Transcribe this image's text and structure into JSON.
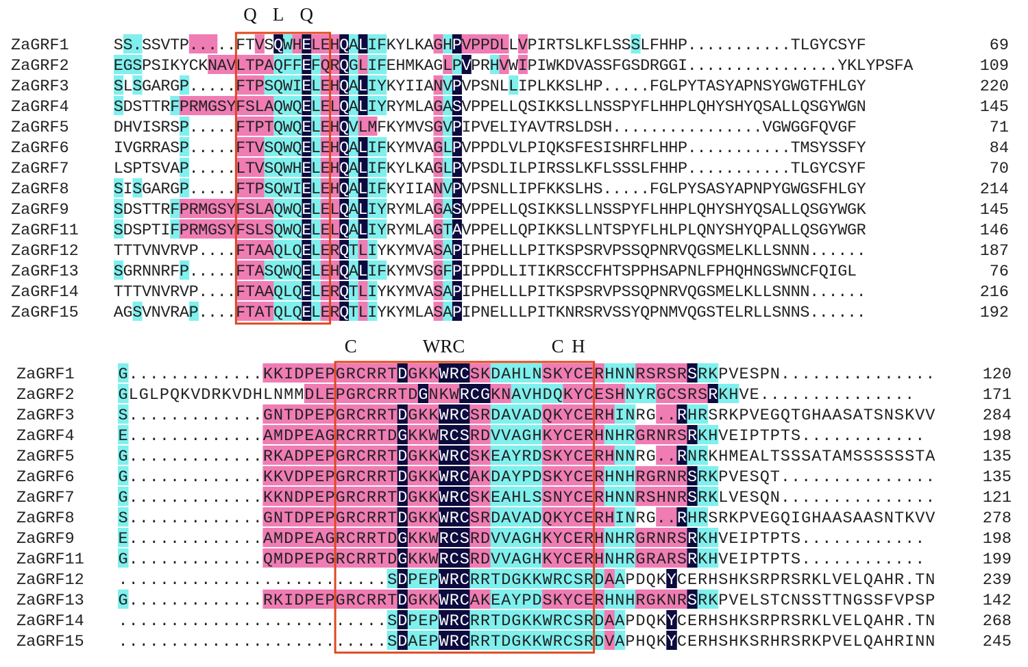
{
  "colors": {
    "identical": "#0c0a3e",
    "high_similarity": "#f07cb4",
    "similar": "#7ff0ee",
    "box": "#e0471f",
    "text": "#222222"
  },
  "blocks": [
    {
      "motif_labels": [
        {
          "text": "Q",
          "col": 14
        },
        {
          "text": "L",
          "col": 17
        },
        {
          "text": "Q",
          "col": 20
        }
      ],
      "box": {
        "start_col": 13,
        "end_col": 22
      },
      "rows": [
        {
          "name": "ZaGRF1",
          "seq": "SS.SSVTP.....FTVSQWHELEHQALIFKYLKAGHPVPPDLLVPIRTSLKFLSSSLFHHP...........TLGYCSYF",
          "num": "69",
          "color": ".cc.....mmm....m.dcmdmmmdcdcc.....mcdmmmmm.m...........c..."
        },
        {
          "name": "ZaGRF2",
          "seq": "EGSPSIKYCKNAVLTPAQFFEFQRQGLIFEHMKAGLPVPRHVWIPIWKDVASSFGSDRGGI................YKLYPSFA",
          "num": "109",
          "color": "ccc.......mmmmmmmcccdcmmdcmcc......mcd..cm.m"
        },
        {
          "name": "ZaGRF3",
          "seq": "SLSGARGP.....FTPSQWIELEHQALIYKYIIANVPVPSNLLIPLKKSLHP.....FGLPYTASYAPNSYGWGTFHLGY",
          "num": "220",
          "color": "c.c....c.....mmmccccdcmmdcdcc.....mcd.....c......................................c....................c"
        },
        {
          "name": "ZaGRF4",
          "seq": "SDSTTRFPRMGSYFSLAQWQELELQALIYRYMLAGASVPPELLQSIKKSLLNSSPYFLHHPLQHYSHYQSALLQSGYWGN",
          "num": "145",
          "color": "c.....cmmmmmmmmmmcccdcmmdcdcc.....mcd"
        },
        {
          "name": "ZaGRF5",
          "seq": "DHVISRSP.....FTPTQWQELEHQVLMFKYMVSGVPIPVELIYAVTRSLDSH................VGWGGFQVGF",
          "num": "71",
          "color": ".......c.....mmmmcccdcmmdcmm......mcd"
        },
        {
          "name": "ZaGRF6",
          "seq": "IVGRRASP.....FTVSQWQELEHQALIFKYMVAGLPVPPDLVLPIQKSFESISHRFLHHP...........TMSYSSFY",
          "num": "84",
          "color": ".......c.....mmmccccdcmmdcdcc.....mcd"
        },
        {
          "name": "ZaGRF7",
          "seq": "LSPTSVAP.....LTVSQWHELEHQALIFKYLKAGLPVPSDLILPIRSSLKFLSSSLFHHP...........TLGYCSYF",
          "num": "70",
          "color": ".......c.....mmmccccdcmmdcdcc.....mcd"
        },
        {
          "name": "ZaGRF8",
          "seq": "SISGARGP.....FTPSQWIELEHQALIFKYIIANVPVPSNLLIPFKKSLHS.....FGLPYSASYAPNPYGWGSFHLGY",
          "num": "214",
          "color": "c.c....c.....mmmccccdcmmdcdcc.....mcd"
        },
        {
          "name": "ZaGRF9",
          "seq": "SDSTTRFPRMGSYFSLAQWQELELQALIYRYMLAGASVPPELLQSIKKSLLNSSPYFLHHPLQHYSHYQSALLQSGYWGK",
          "num": "145",
          "color": "c.....cmmmmmmmmmmcccdcmmdcdcc.....mcd"
        },
        {
          "name": "ZaGRF11",
          "seq": "SDSPTIFPRMGSYFSLSQWQELELQALIYRYMLAGTAVPPELLQPIKKSLLNTSPYFLHLPLQNYSHYQPALLQSGYWGR",
          "num": "146",
          "color": "c.....cmmmmmmmmmmcccdcmmdcdcc.....mcd"
        },
        {
          "name": "ZaGRF12",
          "seq": "TTTVNVRVP....FTAAQLQELERQTLIYKYMVASAPIPHELLLPITKSPSRVPSSQPNRVQGSMELKLLSNNN......",
          "num": "187",
          "color": ".............mmmmcccdcmmdcmc......mcd"
        },
        {
          "name": "ZaGRF13",
          "seq": "SGRNNRFP.....FTASQWQELEHQALIFKYMVSGFPIPPDLLITIKRSCCFHTSPPHSAPNLFPHQHNGSWNCFQIGL",
          "num": "76",
          "color": "c......c.....mmmccccdcmmdcdcc.....mcd"
        },
        {
          "name": "ZaGRF14",
          "seq": "TTTVNVRVP....FTAAQLQELERQTLIYKYMVASAPIPHELLLPITKSPSRVPSSQPNRVQGSMELKLLSNNN......",
          "num": "216",
          "color": ".............mmmmcccdcmmdcmc......mcd"
        },
        {
          "name": "ZaGRF15",
          "seq": "AGSVNVRAP....FTATQLQELERQTLIYKYMLASAPIPNELLLPITKNRSRVSSYQPNMVQGSTELRLLSNNS......",
          "num": "192",
          "color": "..c.....c....mmmmcccdcmmdcmc......mcd"
        }
      ]
    },
    {
      "motif_labels": [
        {
          "text": "C",
          "col": 22
        },
        {
          "text": "WRC",
          "col": 31
        },
        {
          "text": "C",
          "col": 42
        },
        {
          "text": "H",
          "col": 44
        }
      ],
      "box": {
        "start_col": 21,
        "end_col": 45
      },
      "rows": [
        {
          "name": "ZaGRF1",
          "seq": "G.............KKIDPEPGRCRRTDGKKWRCSKDAHLNSKYCERHNNRSRSRSRKPVESPN...............",
          "num": "120",
          "color": "c.............mmmmmmmmmmmmmdmmmdddmmcccccmmmmmmcccmmmmmdcc"
        },
        {
          "name": "ZaGRF2",
          "seq": "GLGLPQKVDRKVDHLNMMDLEPGRCRRTDGNKWRCGKNAVHDQKYCESHNYRGCSRSRKHVE...............",
          "num": "171",
          "color": "c.................mmmmmmmmmmmdmmmdddmmcccccmmmmmmcccmmmmmdcc"
        },
        {
          "name": "ZaGRF3",
          "seq": "S.............GNTDPEPGRCRRTDGKKWRCSRDAVADQKYCERHINRG..RHRSRKPVEGQTGHAASATSNSKVV",
          "num": "284",
          "color": "c.............mmmmmmmmmmmmmdmmmdddmmcccccmmmmmmmcc..mmdcc"
        },
        {
          "name": "ZaGRF4",
          "seq": "E.............AMDPEAGRCRRTDGKKWRCSRDVVAGHKYCERHNHRGRNRSRKHVEIPTPTS............",
          "num": "198",
          "color": "c.............mmmmmmmmmmmmmdmmmdddmmcccccmmmmmmcccmmmmmdcc"
        },
        {
          "name": "ZaGRF5",
          "seq": "G.............RKADPEPGRCRRTDGKKWRCSKEAYRDSKYCERHNNRG..RNRKHMEALTSSSATAMSSSSSSTA",
          "num": "135",
          "color": "c.............mmmmmmmmmmmmmdmmmdddmmcccccmmmmmmmcc..mmdcc"
        },
        {
          "name": "ZaGRF6",
          "seq": "G.............KKVDPEPGRCRRTDGKKWRCAKDAYPDSKYCERHNHRGRNRSRKPVESQT...............",
          "num": "135",
          "color": "c.............mmmmmmmmmmmmmdmmmdddmmcccccmmmmmmcccmmmmmdcc"
        },
        {
          "name": "ZaGRF7",
          "seq": "G.............KKNDPEPGRCRRTDGKKWRCSKEAHLSSNYCERHNNRSHNRSRKLVESQN...............",
          "num": "121",
          "color": "c.............mmmmmmmmmmmmmdmmmdddmmcccccmmmmmmcccmmmmmdcc"
        },
        {
          "name": "ZaGRF8",
          "seq": "S.............GNTDPEPGRCRRTDGKKWRCSRDAVADQKYCERHINRG..RHRSRKPVEGQIGHAASAASNTKVV",
          "num": "278",
          "color": "c.............mmmmmmmmmmmmmdmmmdddmmcccccmmmmmmmcc..mmdcc"
        },
        {
          "name": "ZaGRF9",
          "seq": "E.............AMDPEAGRCRRTDGKKWRCSRDVVAGHKYCERHNHRGRNRSRKHVEIPTPTS............",
          "num": "198",
          "color": "c.............mmmmmmmmmmmmmdmmmdddmmcccccmmmmmmcccmmmmmdcc"
        },
        {
          "name": "ZaGRF11",
          "seq": "G.............QMDPEPGRCRRTDGKKWRCSRDVVAGHKYCERHNHRGRARSRKHVEIPTPTS............",
          "num": "199",
          "color": "c.............mmmmmmmmmmmmmdmmmdddmmcccccmmmmmmcccmmmmmdcc"
        },
        {
          "name": "ZaGRF12",
          "seq": "..........................SDPEPWRCRRTDGKKWRCSRDAAPDQKYCERHSHKSRPRSRKLVELQAHR.TN",
          "num": "239",
          "color": "..........................cdcccdddcccccccccccccmc....d"
        },
        {
          "name": "ZaGRF13",
          "seq": "G.............RKIDPEPGRCRRTDGKKWRCAKEAYPDSKYCERHNHRGKNRSRKPVELSTCNSSTTNGSSFVPSP",
          "num": "142",
          "color": "c.............mmmmmmmmmmmmmdmmmdddmmcccccmmmmmmcccmmmmmdcc"
        },
        {
          "name": "ZaGRF14",
          "seq": "..........................SDPEPWRCRRTDGKKWRCSRDAAPDQKYCERHSHKSRPRSRKLVELQAHR.TN",
          "num": "268",
          "color": "..........................cdcccdddcccccccccccccmc....d"
        },
        {
          "name": "ZaGRF15",
          "seq": "..........................SDAEPWRCRRTDGKKWRCSRDVAPHQKYCERHSHKSRHRSRKPVELQAHRINN",
          "num": "245",
          "color": "..........................cdcccdddcccccccccccccmc....d"
        }
      ]
    }
  ]
}
